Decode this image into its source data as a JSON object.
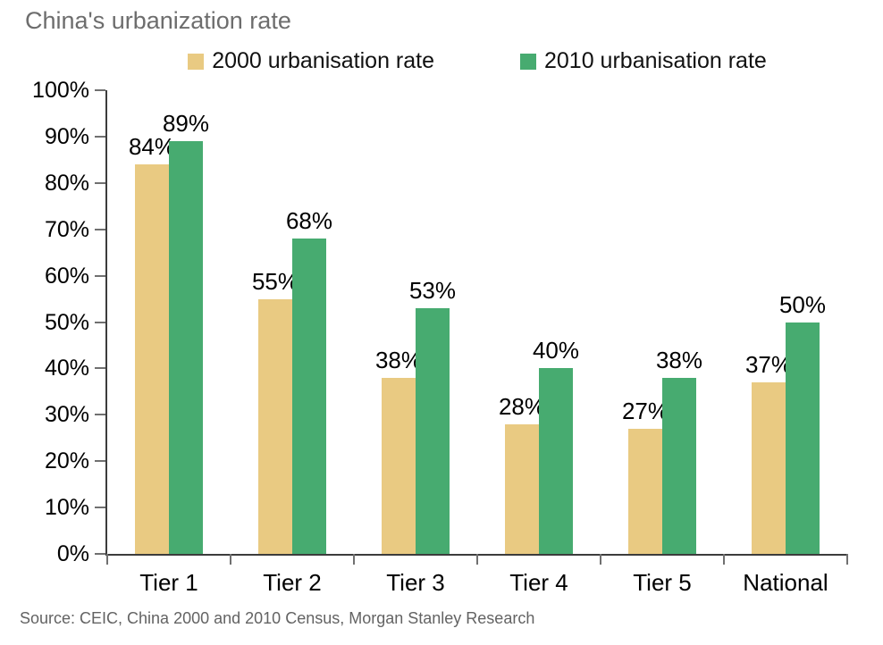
{
  "title": "China's urbanization rate",
  "source": "Source: CEIC, China 2000 and 2010 Census, Morgan Stanley Research",
  "colors": {
    "series_2000": "#E9CA82",
    "series_2010": "#47AB70",
    "title_text": "#6d6d6d",
    "source_text": "#636363",
    "axis": "#3c3c3c",
    "label_text": "#000000"
  },
  "chart_data": {
    "type": "bar",
    "title": "China's urbanization rate",
    "categories": [
      "Tier 1",
      "Tier 2",
      "Tier 3",
      "Tier 4",
      "Tier 5",
      "National"
    ],
    "series": [
      {
        "name": "2000 urbanisation rate",
        "color": "#E9CA82",
        "values": [
          84,
          55,
          38,
          28,
          27,
          37
        ]
      },
      {
        "name": "2010 urbanisation rate",
        "color": "#47AB70",
        "values": [
          89,
          68,
          53,
          40,
          38,
          50
        ]
      }
    ],
    "data_labels": [
      [
        "84%",
        "55%",
        "38%",
        "28%",
        "27%",
        "37%"
      ],
      [
        "89%",
        "68%",
        "53%",
        "40%",
        "38%",
        "50%"
      ]
    ],
    "xlabel": "",
    "ylabel": "",
    "ylim": [
      0,
      100
    ],
    "ytick_step": 10,
    "ytick_labels": [
      "0%",
      "10%",
      "20%",
      "30%",
      "40%",
      "50%",
      "60%",
      "70%",
      "80%",
      "90%",
      "100%"
    ],
    "legend_position": "top",
    "grid": false
  }
}
